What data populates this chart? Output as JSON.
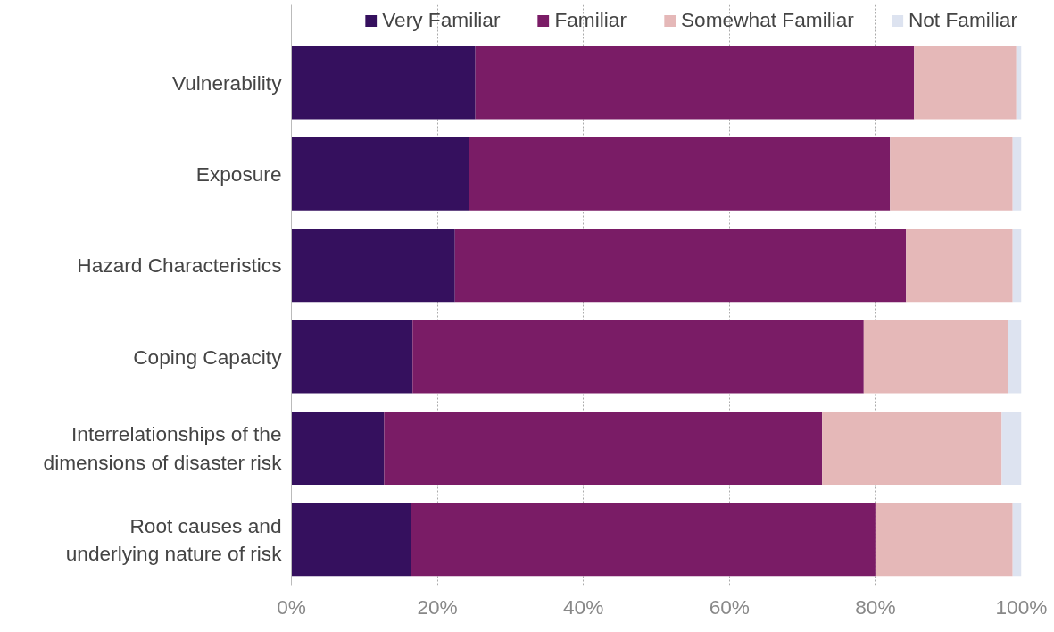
{
  "chart_data": {
    "type": "bar",
    "orientation": "horizontal",
    "stacked": true,
    "categories": [
      "Vulnerability",
      "Exposure",
      "Hazard Characteristics",
      "Coping Capacity",
      "Interrelationships of the\ndimensions of disaster risk",
      "Root causes and\nunderlying nature of risk"
    ],
    "series": [
      {
        "name": "Very Familiar",
        "color": "#35105e",
        "values": [
          25.2,
          24.3,
          22.4,
          16.6,
          12.7,
          16.4
        ]
      },
      {
        "name": "Familiar",
        "color": "#7a1c66",
        "values": [
          60.1,
          57.7,
          61.8,
          61.8,
          60.0,
          63.6
        ]
      },
      {
        "name": "Somewhat Familiar",
        "color": "#e5b8b8",
        "values": [
          14.0,
          16.8,
          14.6,
          19.8,
          24.6,
          18.8
        ]
      },
      {
        "name": "Not Familiar",
        "color": "#dde3f0",
        "values": [
          0.7,
          1.2,
          1.2,
          1.8,
          2.7,
          1.2
        ]
      }
    ],
    "xlim": [
      0,
      100
    ],
    "xticks": [
      {
        "value": 0,
        "label": "0%"
      },
      {
        "value": 20,
        "label": "20%"
      },
      {
        "value": 40,
        "label": "40%"
      },
      {
        "value": 60,
        "label": "60%"
      },
      {
        "value": 80,
        "label": "80%"
      },
      {
        "value": 100,
        "label": "100%"
      }
    ],
    "grid": "x",
    "legend": "top"
  }
}
